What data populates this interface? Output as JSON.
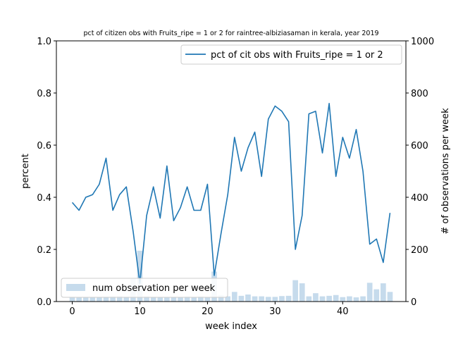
{
  "chart_data": {
    "type": "line+bar",
    "title": "pct of citizen obs with Fruits_ripe = 1 or 2 for raintree-albiziasaman in kerala, year 2019",
    "xlabel": "week index",
    "ylabel_left": "percent",
    "ylabel_right": "# of observations per week",
    "xlim": [
      -2.35,
      49.35
    ],
    "ylim_left": [
      0,
      1.0
    ],
    "ylim_right": [
      0,
      1000
    ],
    "x_ticks": [
      0,
      10,
      20,
      30,
      40
    ],
    "y_ticks_left": [
      0.0,
      0.2,
      0.4,
      0.6,
      0.8,
      1.0
    ],
    "y_ticks_right": [
      0,
      200,
      400,
      600,
      800,
      1000
    ],
    "grid": false,
    "legend_line_position": "top-right",
    "legend_bar_position": "bottom-left",
    "colors": {
      "line": "#1f77b4",
      "bar": "#c6dbec",
      "axis": "#000000"
    },
    "line_series": {
      "name": "pct of cit obs with Fruits_ripe = 1 or 2",
      "x": [
        0,
        1,
        2,
        3,
        4,
        5,
        6,
        7,
        8,
        9,
        10,
        11,
        12,
        13,
        14,
        15,
        16,
        17,
        18,
        19,
        20,
        21,
        22,
        23,
        24,
        25,
        26,
        27,
        28,
        29,
        30,
        31,
        32,
        33,
        34,
        35,
        36,
        37,
        38,
        39,
        40,
        41,
        42,
        43,
        44,
        45,
        46,
        47
      ],
      "values": [
        0.38,
        0.35,
        0.4,
        0.41,
        0.45,
        0.55,
        0.35,
        0.41,
        0.44,
        0.27,
        0.07,
        0.33,
        0.44,
        0.32,
        0.52,
        0.31,
        0.36,
        0.44,
        0.35,
        0.35,
        0.45,
        0.1,
        0.26,
        0.41,
        0.63,
        0.5,
        0.59,
        0.65,
        0.48,
        0.7,
        0.75,
        0.73,
        0.69,
        0.2,
        0.33,
        0.72,
        0.73,
        0.57,
        0.76,
        0.48,
        0.63,
        0.55,
        0.66,
        0.5,
        0.22,
        0.24,
        0.15,
        0.34
      ]
    },
    "bar_series": {
      "name": "num observation per week",
      "x": [
        0,
        1,
        2,
        3,
        4,
        5,
        6,
        7,
        8,
        9,
        10,
        11,
        12,
        13,
        14,
        15,
        16,
        17,
        18,
        19,
        20,
        21,
        22,
        23,
        24,
        25,
        26,
        27,
        28,
        29,
        30,
        31,
        32,
        33,
        34,
        35,
        36,
        37,
        38,
        39,
        40,
        41,
        42,
        43,
        44,
        45,
        46,
        47
      ],
      "values": [
        18,
        17,
        17,
        17,
        16,
        18,
        20,
        21,
        18,
        88,
        195,
        20,
        18,
        17,
        15,
        18,
        15,
        20,
        17,
        20,
        17,
        115,
        25,
        20,
        37,
        22,
        27,
        20,
        20,
        18,
        18,
        21,
        22,
        82,
        70,
        20,
        32,
        20,
        22,
        25,
        17,
        20,
        16,
        20,
        72,
        47,
        70,
        37
      ]
    }
  }
}
